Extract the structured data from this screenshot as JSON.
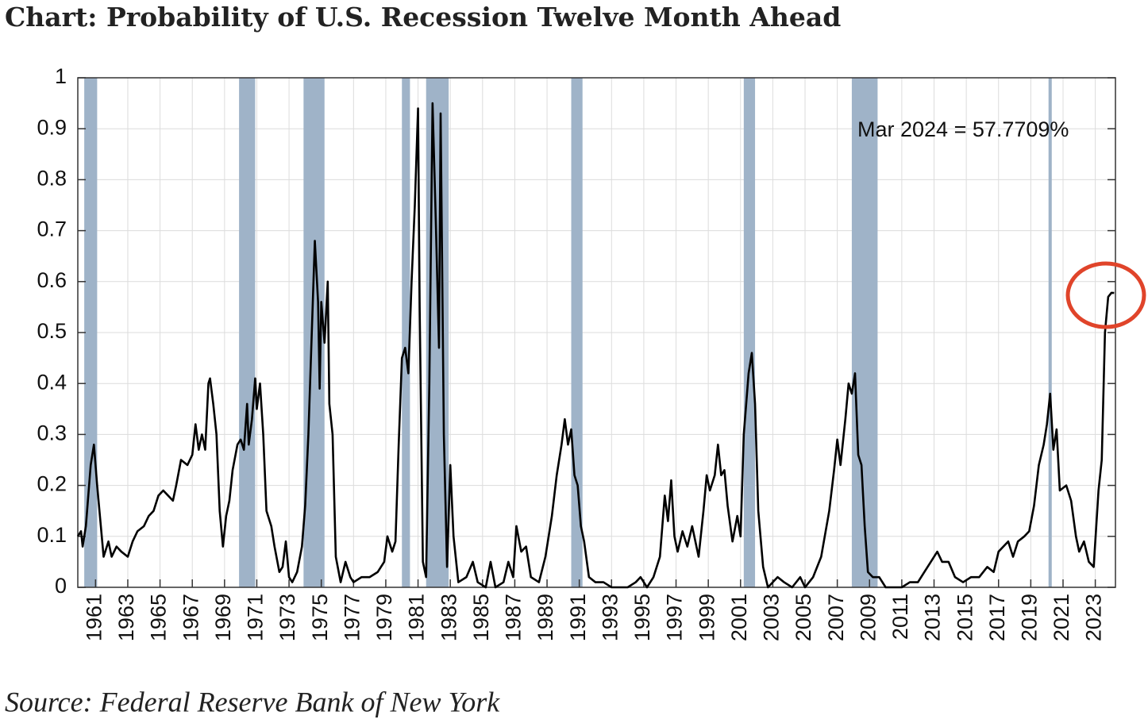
{
  "chart_data": {
    "type": "line",
    "title": "Chart: Probability of U.S. Recession Twelve Month Ahead",
    "source": "Source: Federal Reserve Bank of New York",
    "annotation": "Mar 2024 = 57.7709%",
    "color": "#000000",
    "recession_color": "#9fb3c8",
    "grid": true,
    "xlim": [
      1959.9,
      2024.25
    ],
    "ylim": [
      0,
      1
    ],
    "yticks": [
      0,
      0.1,
      0.2,
      0.3,
      0.4,
      0.5,
      0.6,
      0.7,
      0.8,
      0.9,
      1
    ],
    "xticks": [
      1961,
      1963,
      1965,
      1967,
      1969,
      1971,
      1973,
      1975,
      1977,
      1979,
      1981,
      1983,
      1985,
      1987,
      1989,
      1991,
      1993,
      1995,
      1997,
      1999,
      2001,
      2003,
      2005,
      2007,
      2009,
      2011,
      2013,
      2015,
      2017,
      2019,
      2021,
      2023
    ],
    "recessions": [
      [
        1960.3,
        1961.1
      ],
      [
        1969.9,
        1970.9
      ],
      [
        1973.9,
        1975.2
      ],
      [
        1980.0,
        1980.5
      ],
      [
        1981.5,
        1982.9
      ],
      [
        1990.5,
        1991.2
      ],
      [
        2001.2,
        2001.9
      ],
      [
        2007.9,
        2009.5
      ],
      [
        2020.1,
        2020.3
      ]
    ],
    "x": [
      1959.9,
      1960.1,
      1960.2,
      1960.4,
      1960.7,
      1960.9,
      1961.1,
      1961.3,
      1961.5,
      1961.8,
      1962.0,
      1962.3,
      1962.6,
      1963.0,
      1963.3,
      1963.6,
      1964.0,
      1964.3,
      1964.6,
      1964.9,
      1965.2,
      1965.5,
      1965.8,
      1966.0,
      1966.3,
      1966.7,
      1967.0,
      1967.2,
      1967.4,
      1967.6,
      1967.8,
      1968.0,
      1968.1,
      1968.3,
      1968.5,
      1968.7,
      1968.9,
      1969.1,
      1969.3,
      1969.5,
      1969.8,
      1970.0,
      1970.2,
      1970.4,
      1970.5,
      1970.7,
      1970.9,
      1971.0,
      1971.2,
      1971.4,
      1971.6,
      1971.9,
      1972.1,
      1972.4,
      1972.6,
      1972.8,
      1973.0,
      1973.2,
      1973.5,
      1973.8,
      1974.0,
      1974.2,
      1974.4,
      1974.6,
      1974.7,
      1974.8,
      1974.9,
      1975.0,
      1975.2,
      1975.4,
      1975.5,
      1975.7,
      1975.9,
      1976.2,
      1976.5,
      1976.8,
      1977.0,
      1977.5,
      1978.0,
      1978.5,
      1978.9,
      1979.1,
      1979.4,
      1979.6,
      1979.8,
      1980.0,
      1980.2,
      1980.4,
      1980.6,
      1980.8,
      1981.0,
      1981.1,
      1981.3,
      1981.5,
      1981.7,
      1981.9,
      1982.1,
      1982.3,
      1982.4,
      1982.6,
      1982.8,
      1983.0,
      1983.2,
      1983.5,
      1984.0,
      1984.4,
      1984.7,
      1985.2,
      1985.5,
      1985.8,
      1986.3,
      1986.6,
      1986.9,
      1987.1,
      1987.4,
      1987.7,
      1988.0,
      1988.5,
      1988.9,
      1989.3,
      1989.6,
      1989.9,
      1990.1,
      1990.3,
      1990.5,
      1990.7,
      1990.9,
      1991.1,
      1991.3,
      1991.6,
      1992.0,
      1992.5,
      1993.0,
      1994.0,
      1994.5,
      1994.8,
      1995.2,
      1995.6,
      1996.0,
      1996.3,
      1996.5,
      1996.7,
      1996.9,
      1997.1,
      1997.4,
      1997.7,
      1998.0,
      1998.4,
      1998.7,
      1998.9,
      1999.1,
      1999.4,
      1999.6,
      1999.8,
      2000.0,
      2000.2,
      2000.5,
      2000.8,
      2001.0,
      2001.2,
      2001.5,
      2001.7,
      2001.9,
      2002.1,
      2002.4,
      2002.7,
      2003.3,
      2003.7,
      2004.2,
      2004.7,
      2005.0,
      2005.5,
      2006.0,
      2006.5,
      2006.8,
      2007.0,
      2007.2,
      2007.5,
      2007.7,
      2007.9,
      2008.1,
      2008.3,
      2008.5,
      2008.7,
      2008.9,
      2009.2,
      2009.6,
      2010.0,
      2010.5,
      2011.0,
      2011.5,
      2012.0,
      2012.4,
      2012.8,
      2013.2,
      2013.5,
      2013.9,
      2014.3,
      2014.8,
      2015.3,
      2015.8,
      2016.3,
      2016.7,
      2017.0,
      2017.3,
      2017.6,
      2017.9,
      2018.2,
      2018.6,
      2018.9,
      2019.2,
      2019.5,
      2019.8,
      2020.0,
      2020.2,
      2020.4,
      2020.6,
      2020.8,
      2021.2,
      2021.5,
      2021.8,
      2022.0,
      2022.3,
      2022.6,
      2022.9,
      2023.2,
      2023.4,
      2023.6,
      2023.8,
      2024.0,
      2024.17
    ],
    "values": [
      0.1,
      0.11,
      0.08,
      0.12,
      0.24,
      0.28,
      0.2,
      0.13,
      0.06,
      0.09,
      0.06,
      0.08,
      0.07,
      0.06,
      0.09,
      0.11,
      0.12,
      0.14,
      0.15,
      0.18,
      0.19,
      0.18,
      0.17,
      0.2,
      0.25,
      0.24,
      0.26,
      0.32,
      0.27,
      0.3,
      0.27,
      0.4,
      0.41,
      0.36,
      0.3,
      0.15,
      0.08,
      0.14,
      0.17,
      0.23,
      0.28,
      0.29,
      0.27,
      0.36,
      0.28,
      0.33,
      0.41,
      0.35,
      0.4,
      0.3,
      0.15,
      0.12,
      0.08,
      0.03,
      0.04,
      0.09,
      0.02,
      0.01,
      0.03,
      0.08,
      0.16,
      0.3,
      0.49,
      0.68,
      0.62,
      0.56,
      0.39,
      0.56,
      0.48,
      0.6,
      0.36,
      0.3,
      0.06,
      0.01,
      0.05,
      0.02,
      0.01,
      0.02,
      0.02,
      0.03,
      0.05,
      0.1,
      0.07,
      0.09,
      0.28,
      0.45,
      0.47,
      0.42,
      0.6,
      0.75,
      0.94,
      0.55,
      0.05,
      0.02,
      0.4,
      0.95,
      0.72,
      0.47,
      0.93,
      0.3,
      0.04,
      0.24,
      0.1,
      0.01,
      0.02,
      0.05,
      0.01,
      0.0,
      0.05,
      0.0,
      0.01,
      0.05,
      0.02,
      0.12,
      0.07,
      0.08,
      0.02,
      0.01,
      0.06,
      0.14,
      0.22,
      0.28,
      0.33,
      0.28,
      0.31,
      0.22,
      0.2,
      0.12,
      0.09,
      0.02,
      0.01,
      0.01,
      0.0,
      0.0,
      0.01,
      0.02,
      0.0,
      0.02,
      0.06,
      0.18,
      0.13,
      0.21,
      0.1,
      0.07,
      0.11,
      0.08,
      0.12,
      0.06,
      0.15,
      0.22,
      0.19,
      0.22,
      0.28,
      0.22,
      0.23,
      0.16,
      0.09,
      0.14,
      0.1,
      0.3,
      0.42,
      0.46,
      0.36,
      0.15,
      0.04,
      0.0,
      0.02,
      0.01,
      0.0,
      0.02,
      0.0,
      0.02,
      0.06,
      0.15,
      0.23,
      0.29,
      0.24,
      0.33,
      0.4,
      0.38,
      0.42,
      0.26,
      0.24,
      0.12,
      0.03,
      0.02,
      0.02,
      0.0,
      0.0,
      0.0,
      0.01,
      0.01,
      0.03,
      0.05,
      0.07,
      0.05,
      0.05,
      0.02,
      0.01,
      0.02,
      0.02,
      0.04,
      0.03,
      0.07,
      0.08,
      0.09,
      0.06,
      0.09,
      0.1,
      0.11,
      0.16,
      0.24,
      0.28,
      0.32,
      0.38,
      0.27,
      0.31,
      0.19,
      0.2,
      0.17,
      0.1,
      0.07,
      0.09,
      0.05,
      0.04,
      0.19,
      0.25,
      0.5,
      0.57,
      0.578,
      0.577709
    ]
  }
}
